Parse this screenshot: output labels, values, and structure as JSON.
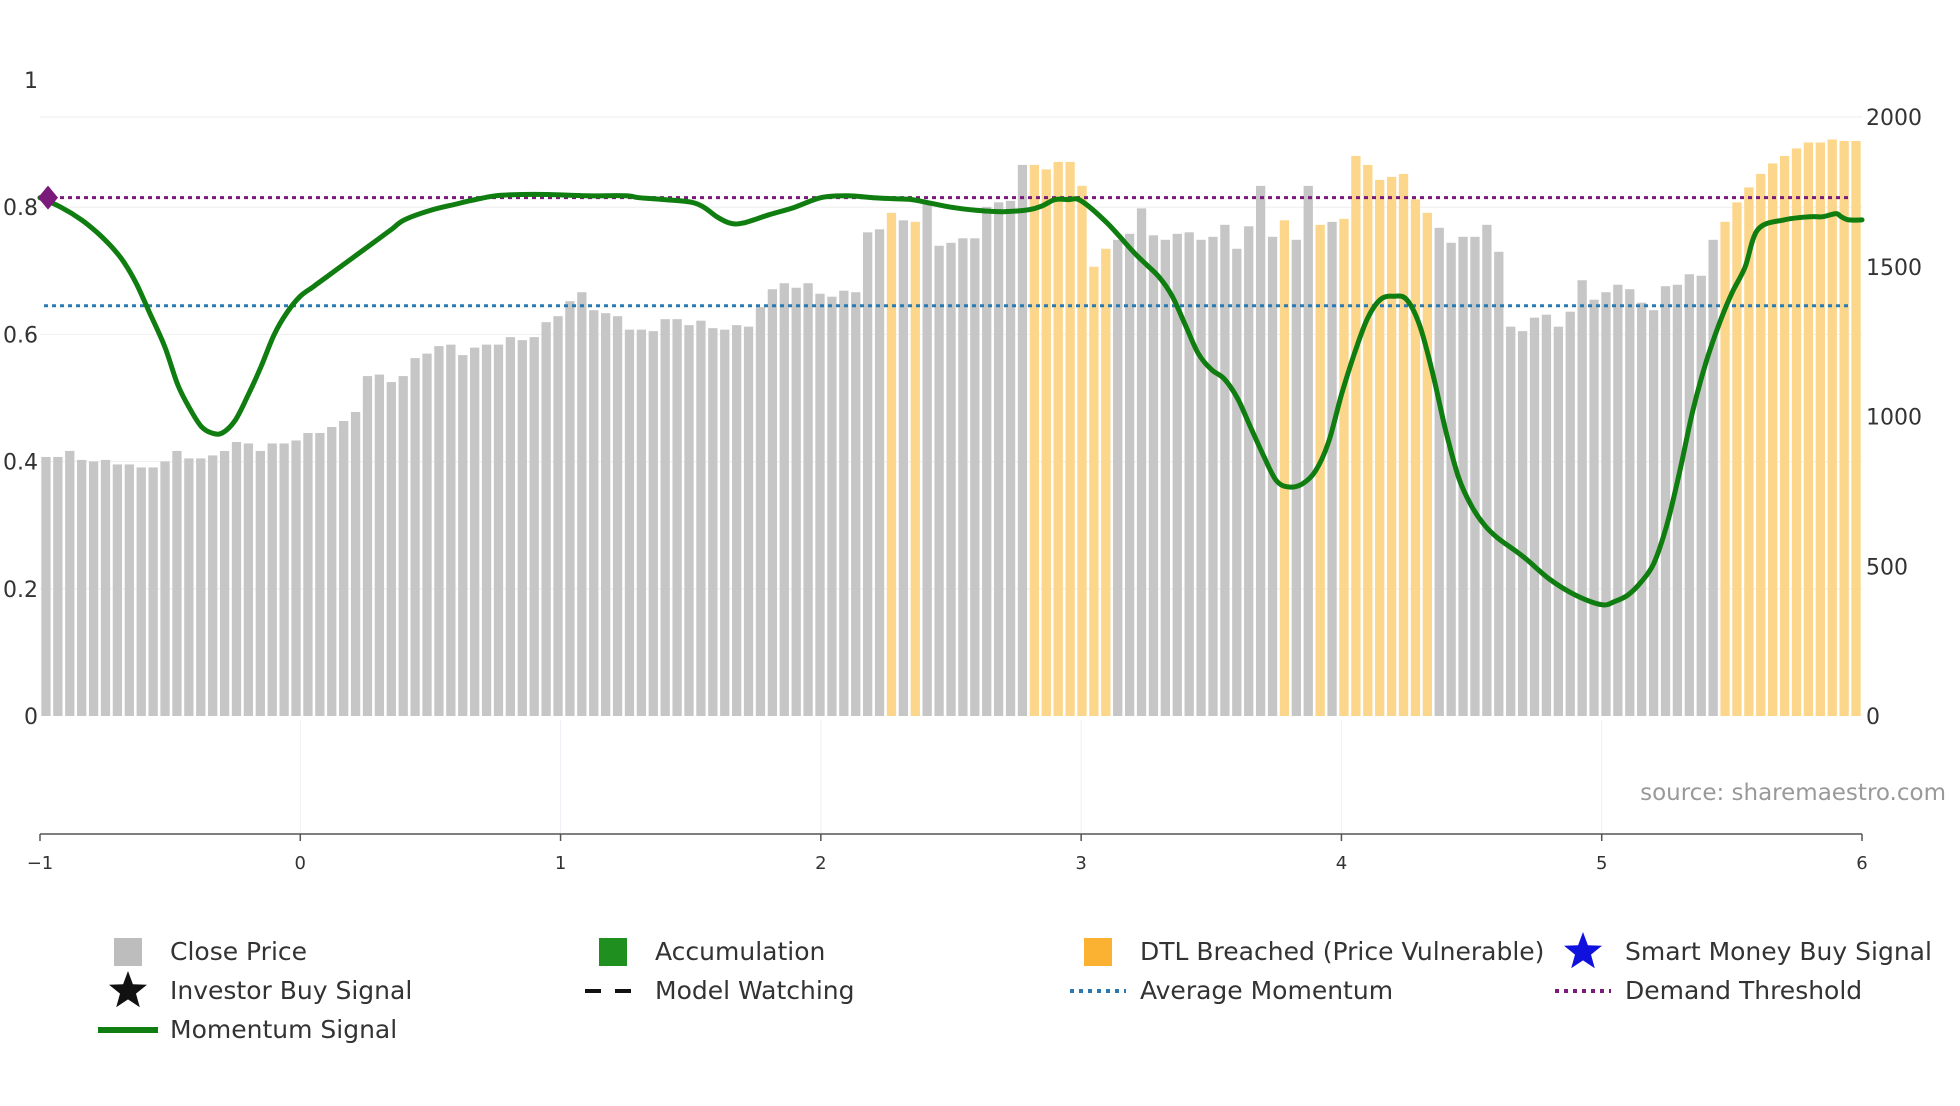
{
  "chart_data": {
    "type": "bar",
    "title": "",
    "source_label": "source: sharemaestro.com",
    "left_axis": {
      "ticks": [
        "0",
        "0.2",
        "0.4",
        "0.6",
        "0.8"
      ],
      "top_label": "1",
      "range": [
        0,
        1
      ]
    },
    "right_axis": {
      "ticks": [
        "0",
        "500",
        "1000",
        "1500",
        "2000"
      ],
      "range": [
        0,
        2100
      ]
    },
    "x_axis": {
      "ticks": [
        "−1",
        "0",
        "1",
        "2",
        "3",
        "4",
        "5",
        "6"
      ],
      "range": [
        -1,
        6
      ]
    },
    "series": [
      {
        "name": "Close Price",
        "color": "#c6c6c6",
        "highlight_color": "#fcd68a",
        "values": [
          865,
          865,
          885,
          855,
          850,
          855,
          840,
          840,
          830,
          830,
          850,
          885,
          860,
          860,
          870,
          885,
          915,
          910,
          885,
          910,
          910,
          920,
          945,
          945,
          965,
          985,
          1015,
          1135,
          1140,
          1115,
          1135,
          1195,
          1210,
          1235,
          1240,
          1205,
          1230,
          1240,
          1240,
          1265,
          1255,
          1265,
          1315,
          1335,
          1385,
          1415,
          1355,
          1345,
          1335,
          1290,
          1290,
          1285,
          1325,
          1325,
          1305,
          1320,
          1295,
          1290,
          1305,
          1300,
          1365,
          1425,
          1445,
          1430,
          1445,
          1410,
          1400,
          1420,
          1415,
          1615,
          1625,
          1680,
          1655,
          1650,
          1720,
          1570,
          1580,
          1595,
          1595,
          1700,
          1715,
          1720,
          1840,
          1840,
          1825,
          1850,
          1850,
          1770,
          1500,
          1560,
          1590,
          1610,
          1695,
          1605,
          1590,
          1610,
          1615,
          1590,
          1600,
          1640,
          1560,
          1635,
          1770,
          1600,
          1655,
          1590,
          1770,
          1640,
          1650,
          1660,
          1870,
          1840,
          1790,
          1800,
          1810,
          1725,
          1680,
          1630,
          1580,
          1600,
          1600,
          1640,
          1550,
          1300,
          1285,
          1330,
          1340,
          1300,
          1350,
          1455,
          1390,
          1415,
          1440,
          1425,
          1380,
          1355,
          1435,
          1440,
          1475,
          1470,
          1590,
          1650,
          1715,
          1765,
          1810,
          1845,
          1870,
          1895,
          1915,
          1915,
          1925,
          1920,
          1920
        ],
        "highlight_ranges": [
          [
            71,
            71
          ],
          [
            73,
            73
          ],
          [
            83,
            89
          ],
          [
            104,
            104
          ],
          [
            107,
            107
          ],
          [
            109,
            116
          ],
          [
            141,
            155
          ]
        ]
      },
      {
        "name": "Momentum Signal",
        "color": "#0f7d0f",
        "x": [
          -1,
          -0.92,
          -0.84,
          -0.78,
          -0.73,
          -0.68,
          -0.63,
          -0.58,
          -0.52,
          -0.47,
          -0.42,
          -0.38,
          -0.34,
          -0.3,
          -0.25,
          -0.2,
          -0.15,
          -0.1,
          -0.05,
          0,
          0.05,
          0.1,
          0.2,
          0.3,
          0.35,
          0.4,
          0.5,
          0.6,
          0.65,
          0.75,
          0.85,
          0.95,
          1.1,
          1.25,
          1.3,
          1.4,
          1.5,
          1.55,
          1.6,
          1.65,
          1.7,
          1.8,
          1.9,
          2,
          2.1,
          2.2,
          2.3,
          2.35,
          2.4,
          2.5,
          2.6,
          2.7,
          2.8,
          2.85,
          2.9,
          2.95,
          3,
          3.1,
          3.2,
          3.25,
          3.3,
          3.35,
          3.4,
          3.45,
          3.5,
          3.55,
          3.6,
          3.65,
          3.7,
          3.75,
          3.8,
          3.85,
          3.9,
          3.95,
          4,
          4.05,
          4.1,
          4.15,
          4.2,
          4.25,
          4.3,
          4.35,
          4.4,
          4.45,
          4.5,
          4.55,
          4.6,
          4.7,
          4.8,
          4.9,
          5,
          5.05,
          5.1,
          5.15,
          5.2,
          5.25,
          5.3,
          5.35,
          5.4,
          5.45,
          5.5,
          5.55,
          5.6,
          5.7,
          5.8,
          5.85,
          5.9,
          5.92,
          5.95,
          6
        ],
        "y": [
          0.815,
          0.8,
          0.78,
          0.76,
          0.74,
          0.715,
          0.68,
          0.635,
          0.58,
          0.52,
          0.48,
          0.455,
          0.445,
          0.445,
          0.465,
          0.505,
          0.55,
          0.6,
          0.635,
          0.66,
          0.675,
          0.69,
          0.72,
          0.75,
          0.765,
          0.78,
          0.795,
          0.805,
          0.81,
          0.818,
          0.82,
          0.82,
          0.818,
          0.818,
          0.815,
          0.812,
          0.808,
          0.8,
          0.785,
          0.775,
          0.775,
          0.788,
          0.8,
          0.815,
          0.818,
          0.815,
          0.813,
          0.812,
          0.808,
          0.8,
          0.795,
          0.793,
          0.796,
          0.802,
          0.812,
          0.812,
          0.81,
          0.775,
          0.73,
          0.71,
          0.69,
          0.66,
          0.615,
          0.57,
          0.545,
          0.53,
          0.5,
          0.455,
          0.41,
          0.37,
          0.36,
          0.365,
          0.385,
          0.43,
          0.505,
          0.57,
          0.625,
          0.655,
          0.66,
          0.655,
          0.615,
          0.54,
          0.45,
          0.375,
          0.33,
          0.3,
          0.28,
          0.25,
          0.215,
          0.19,
          0.175,
          0.18,
          0.19,
          0.21,
          0.24,
          0.3,
          0.385,
          0.48,
          0.555,
          0.615,
          0.665,
          0.705,
          0.765,
          0.78,
          0.785,
          0.785,
          0.79,
          0.785,
          0.78,
          0.78
        ]
      }
    ],
    "average_momentum": {
      "value": 0.645,
      "color": "#2a7ab0"
    },
    "demand_threshold": {
      "value": 0.815,
      "color": "#7a1a7a"
    },
    "legend": [
      {
        "id": "close-price",
        "label": "Close Price",
        "marker": "square",
        "color": "#bdbdbd"
      },
      {
        "id": "accumulation",
        "label": "Accumulation",
        "marker": "square",
        "color": "#1f8f1f"
      },
      {
        "id": "dtl-breached",
        "label": "DTL Breached (Price Vulnerable)",
        "marker": "square",
        "color": "#fbb232"
      },
      {
        "id": "smart-money",
        "label": "Smart Money Buy Signal",
        "marker": "star",
        "color": "#1111dd"
      },
      {
        "id": "investor-buy",
        "label": "Investor Buy Signal",
        "marker": "star",
        "color": "#111111"
      },
      {
        "id": "model-watching",
        "label": "Model Watching",
        "marker": "dash",
        "color": "#111111"
      },
      {
        "id": "average-momentum",
        "label": "Average Momentum",
        "marker": "dot",
        "color": "#2a7ab0"
      },
      {
        "id": "demand-threshold",
        "label": "Demand Threshold",
        "marker": "dot",
        "color": "#7a1a7a"
      },
      {
        "id": "momentum-signal",
        "label": "Momentum Signal",
        "marker": "line",
        "color": "#0f7d0f"
      }
    ]
  }
}
